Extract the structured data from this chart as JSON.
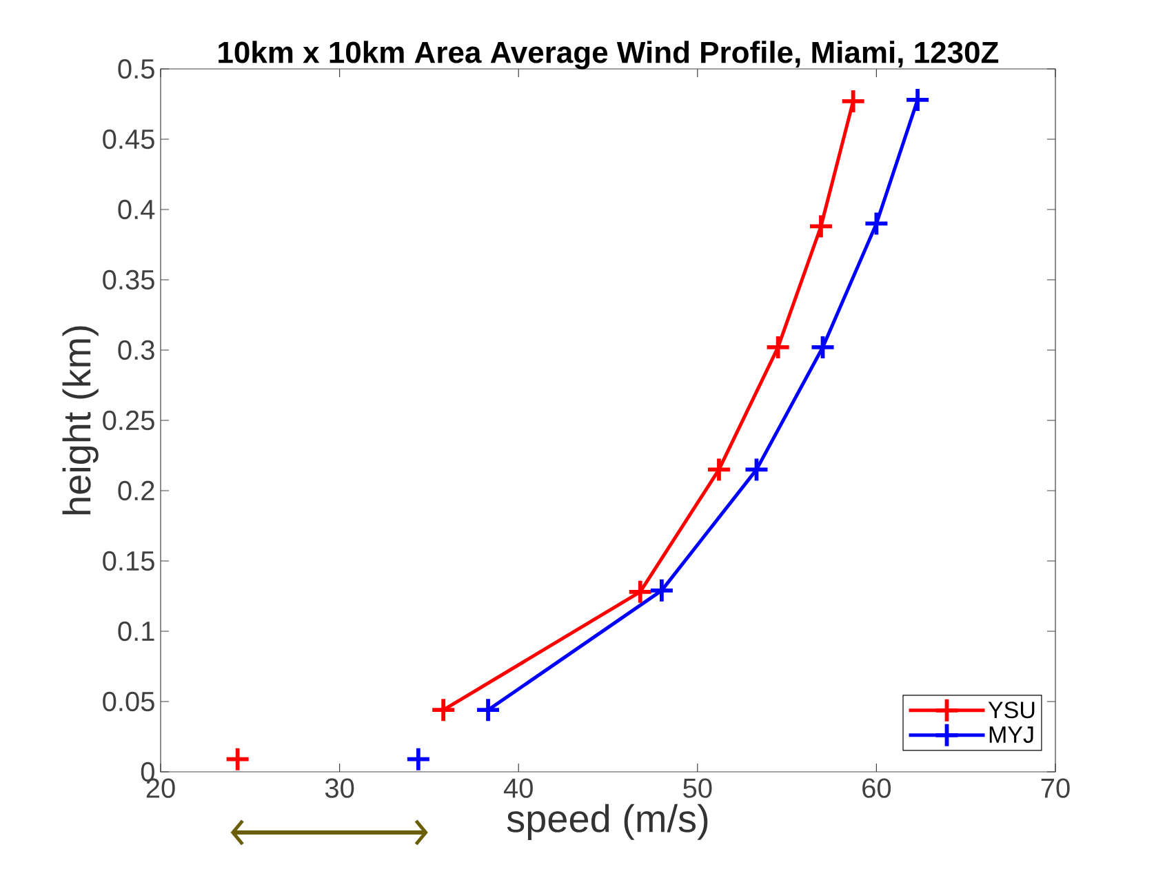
{
  "chart_data": {
    "type": "line",
    "title": "10km x 10km Area Average Wind Profile, Miami, 1230Z",
    "xlabel": "speed (m/s)",
    "ylabel": "height (km)",
    "xlim": [
      20,
      70
    ],
    "xticks": [
      20,
      30,
      40,
      50,
      60,
      70
    ],
    "ylim": [
      0,
      0.5
    ],
    "yticks": [
      0,
      0.05,
      0.1,
      0.15,
      0.2,
      0.25,
      0.3,
      0.35,
      0.4,
      0.45,
      0.5
    ],
    "legend": "bottom right",
    "marker": "cross",
    "line_style": "solid",
    "grid": false,
    "series": [
      {
        "name": "YSU",
        "color": "#ff0000",
        "x": [
          35.8,
          46.8,
          51.2,
          54.5,
          56.9,
          58.7
        ],
        "values": [
          0.044,
          0.128,
          0.215,
          0.302,
          0.388,
          0.477
        ]
      },
      {
        "name": "MYJ",
        "color": "#0000ff",
        "x": [
          38.3,
          48.0,
          53.3,
          57.0,
          60.0,
          62.3
        ],
        "values": [
          0.044,
          0.129,
          0.215,
          0.302,
          0.39,
          0.478
        ]
      },
      {
        "type": "scatter",
        "color": "#ff0000",
        "x": [
          24.3
        ],
        "values": [
          0.009
        ]
      },
      {
        "type": "scatter",
        "color": "#0000ff",
        "x": [
          34.4
        ],
        "values": [
          0.009
        ]
      }
    ]
  }
}
